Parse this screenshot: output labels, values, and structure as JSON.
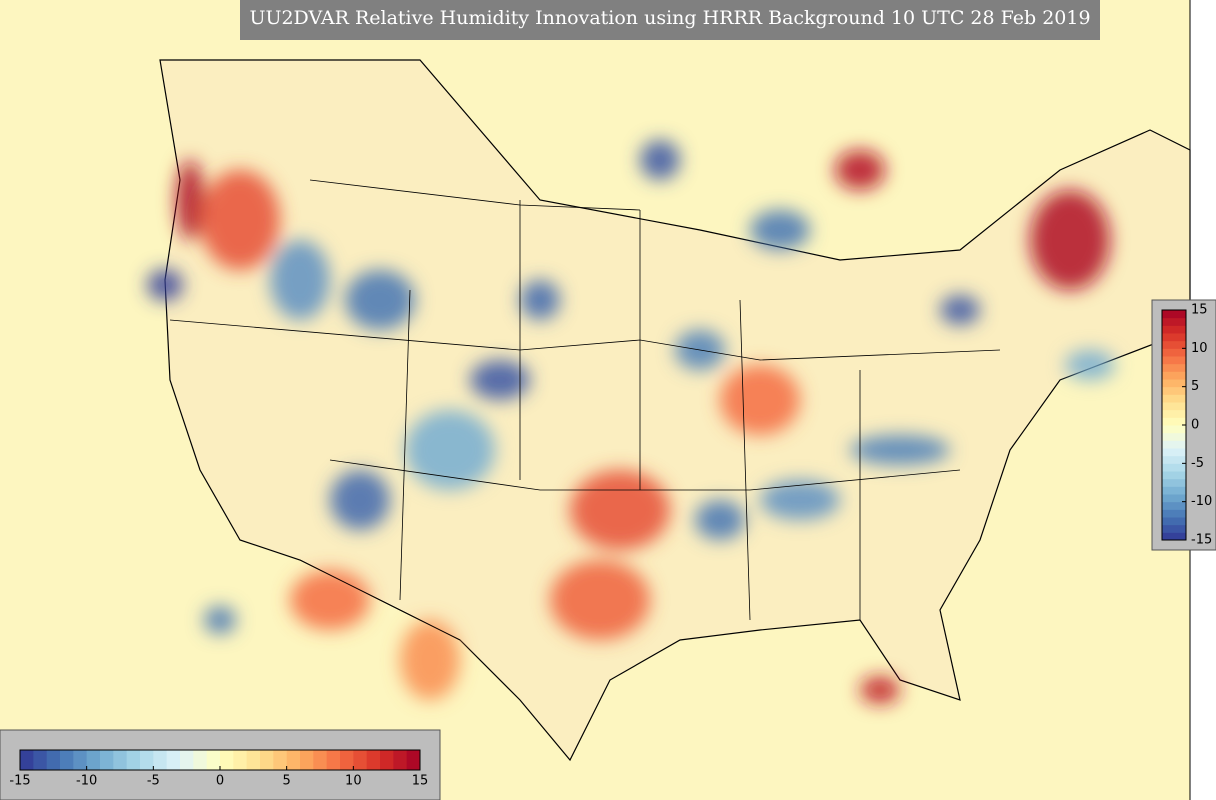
{
  "title": "UU2DVAR Relative Humidity Innovation using HRRR Background 10 UTC 28 Feb 2019",
  "colorbar": {
    "lim": [
      -15,
      15
    ],
    "ticks": [
      -15,
      -10,
      -5,
      0,
      5,
      10,
      15
    ],
    "colors": [
      "#313695",
      "#4575b4",
      "#74add1",
      "#abd9e9",
      "#e0f3f8",
      "#ffffbf",
      "#fee090",
      "#fdae61",
      "#f46d43",
      "#d73027",
      "#a50026"
    ]
  }
}
